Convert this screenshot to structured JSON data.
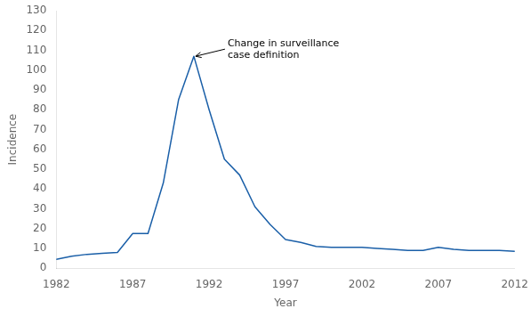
{
  "chart_data": {
    "type": "line",
    "x": [
      1982,
      1983,
      1984,
      1985,
      1986,
      1987,
      1988,
      1989,
      1990,
      1991,
      1992,
      1993,
      1994,
      1995,
      1996,
      1997,
      1998,
      1999,
      2000,
      2001,
      2002,
      2003,
      2004,
      2005,
      2006,
      2007,
      2008,
      2009,
      2010,
      2011,
      2012
    ],
    "values": [
      4.5,
      6.0,
      7.0,
      7.5,
      8.0,
      17.5,
      17.5,
      43.0,
      85.0,
      107.0,
      80.0,
      55.0,
      47.0,
      31.0,
      22.0,
      14.5,
      13.0,
      11.0,
      10.5,
      10.5,
      10.5,
      10.0,
      9.5,
      9.0,
      9.0,
      10.5,
      9.5,
      9.0,
      9.0,
      9.0,
      8.5
    ],
    "color": "#1a5fa8",
    "xlabel": "Year",
    "ylabel": "Incidence",
    "xlim": [
      1982,
      2012
    ],
    "ylim": [
      0,
      130
    ],
    "xticks": [
      1982,
      1987,
      1992,
      1997,
      2002,
      2007,
      2012
    ],
    "yticks": [
      0,
      10,
      20,
      30,
      40,
      50,
      60,
      70,
      80,
      90,
      100,
      110,
      120,
      130
    ],
    "grid": false,
    "annotations": [
      {
        "text": "Change in surveillance\ncase definition",
        "x": 1991,
        "y": 107.0
      }
    ]
  }
}
